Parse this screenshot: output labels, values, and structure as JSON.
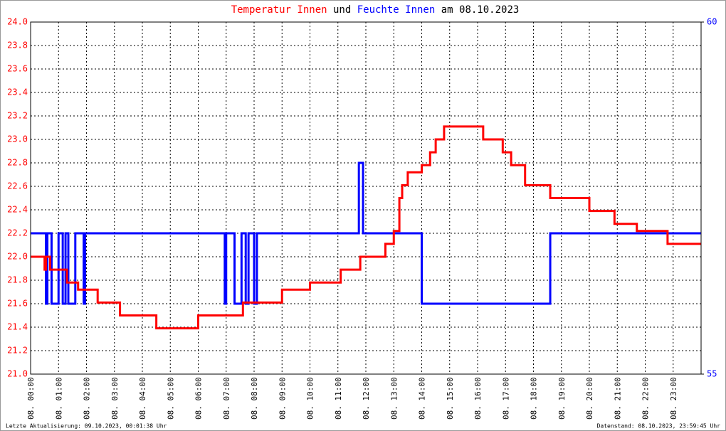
{
  "chart_data": {
    "type": "line",
    "title_connector": "und",
    "title_suffix": "am 08.10.2023",
    "footer_left": "Letzte Aktualisierung: 09.10.2023, 00:01:38 Uhr",
    "footer_right": "Datenstand: 08.10.2023, 23:59:45 Uhr",
    "xlim": [
      0,
      24
    ],
    "xticks": [
      {
        "value": 0,
        "label": "08. 00:00"
      },
      {
        "value": 1,
        "label": "08. 01:00"
      },
      {
        "value": 2,
        "label": "08. 02:00"
      },
      {
        "value": 3,
        "label": "08. 03:00"
      },
      {
        "value": 4,
        "label": "08. 04:00"
      },
      {
        "value": 5,
        "label": "08. 05:00"
      },
      {
        "value": 6,
        "label": "08. 06:00"
      },
      {
        "value": 7,
        "label": "08. 07:00"
      },
      {
        "value": 8,
        "label": "08. 08:00"
      },
      {
        "value": 9,
        "label": "08. 09:00"
      },
      {
        "value": 10,
        "label": "08. 10:00"
      },
      {
        "value": 11,
        "label": "08. 11:00"
      },
      {
        "value": 12,
        "label": "08. 12:00"
      },
      {
        "value": 13,
        "label": "08. 13:00"
      },
      {
        "value": 14,
        "label": "08. 14:00"
      },
      {
        "value": 15,
        "label": "08. 15:00"
      },
      {
        "value": 16,
        "label": "08. 16:00"
      },
      {
        "value": 17,
        "label": "08. 17:00"
      },
      {
        "value": 18,
        "label": "08. 18:00"
      },
      {
        "value": 19,
        "label": "08. 19:00"
      },
      {
        "value": 20,
        "label": "08. 20:00"
      },
      {
        "value": 21,
        "label": "08. 21:00"
      },
      {
        "value": 22,
        "label": "08. 22:00"
      },
      {
        "value": 23,
        "label": "08. 23:00"
      }
    ],
    "ylim": [
      21.0,
      24.0
    ],
    "yticks": [
      {
        "value": 21.0,
        "label": "21.0"
      },
      21.2,
      21.4,
      21.6,
      21.8,
      {
        "value": 22.0,
        "label": "22.0"
      },
      22.2,
      22.4,
      22.6,
      22.8,
      {
        "value": 23.0,
        "label": "23.0"
      },
      23.2,
      23.4,
      23.6,
      23.8,
      {
        "value": 24.0,
        "label": "24.0"
      }
    ],
    "y2lim": [
      55,
      60
    ],
    "y2ticks": [
      55,
      60
    ],
    "grid": true,
    "series": [
      {
        "name": "Temperatur Innen",
        "color": "#ff0000",
        "axis": "y",
        "x": [
          0,
          0.5,
          0.5,
          0.55,
          0.55,
          0.7,
          0.7,
          1.3,
          1.3,
          1.7,
          1.7,
          2.4,
          2.4,
          3.2,
          3.2,
          4.5,
          4.5,
          6.0,
          6.0,
          7.6,
          7.6,
          9.0,
          9.0,
          10.0,
          10.0,
          11.1,
          11.1,
          11.8,
          11.8,
          12.7,
          12.7,
          13.0,
          13.0,
          13.2,
          13.2,
          13.3,
          13.3,
          13.5,
          13.5,
          14.0,
          14.0,
          14.3,
          14.3,
          14.5,
          14.5,
          14.8,
          14.8,
          16.2,
          16.2,
          16.9,
          16.9,
          17.2,
          17.2,
          17.7,
          17.7,
          18.6,
          18.6,
          20.0,
          20.0,
          20.9,
          20.9,
          21.7,
          21.7,
          22.8,
          22.8,
          24.0
        ],
        "values": [
          22.0,
          22.0,
          21.89,
          21.89,
          22.0,
          22.0,
          21.89,
          21.89,
          21.78,
          21.78,
          21.72,
          21.72,
          21.61,
          21.61,
          21.5,
          21.5,
          21.39,
          21.39,
          21.5,
          21.5,
          21.61,
          21.61,
          21.72,
          21.72,
          21.78,
          21.78,
          21.89,
          21.89,
          22.0,
          22.0,
          22.11,
          22.11,
          22.22,
          22.22,
          22.5,
          22.5,
          22.61,
          22.61,
          22.72,
          22.72,
          22.78,
          22.78,
          22.89,
          22.89,
          23.0,
          23.0,
          23.11,
          23.11,
          23.0,
          23.0,
          22.89,
          22.89,
          22.78,
          22.78,
          22.61,
          22.61,
          22.5,
          22.5,
          22.39,
          22.39,
          22.28,
          22.28,
          22.22,
          22.22,
          22.11,
          22.11
        ]
      },
      {
        "name": "Feuchte Innen",
        "color": "#0000ff",
        "axis": "y2",
        "x": [
          0,
          0.55,
          0.55,
          0.6,
          0.6,
          0.75,
          0.75,
          1.0,
          1.0,
          1.15,
          1.15,
          1.25,
          1.25,
          1.35,
          1.35,
          1.6,
          1.6,
          1.9,
          1.9,
          1.95,
          1.95,
          6.95,
          6.95,
          7.0,
          7.0,
          7.3,
          7.3,
          7.55,
          7.55,
          7.7,
          7.7,
          7.8,
          7.8,
          8.0,
          8.0,
          8.1,
          8.1,
          11.75,
          11.75,
          11.9,
          11.9,
          14.0,
          14.0,
          18.6,
          18.6,
          24.0
        ],
        "values": [
          57,
          57,
          56,
          56,
          57,
          57,
          56,
          56,
          57,
          57,
          56,
          56,
          57,
          57,
          56,
          56,
          57,
          57,
          56,
          56,
          57,
          57,
          56,
          56,
          57,
          57,
          56,
          56,
          57,
          57,
          56,
          56,
          57,
          57,
          56,
          56,
          57,
          57,
          58,
          58,
          57,
          57,
          56,
          56,
          57,
          57
        ]
      }
    ]
  }
}
